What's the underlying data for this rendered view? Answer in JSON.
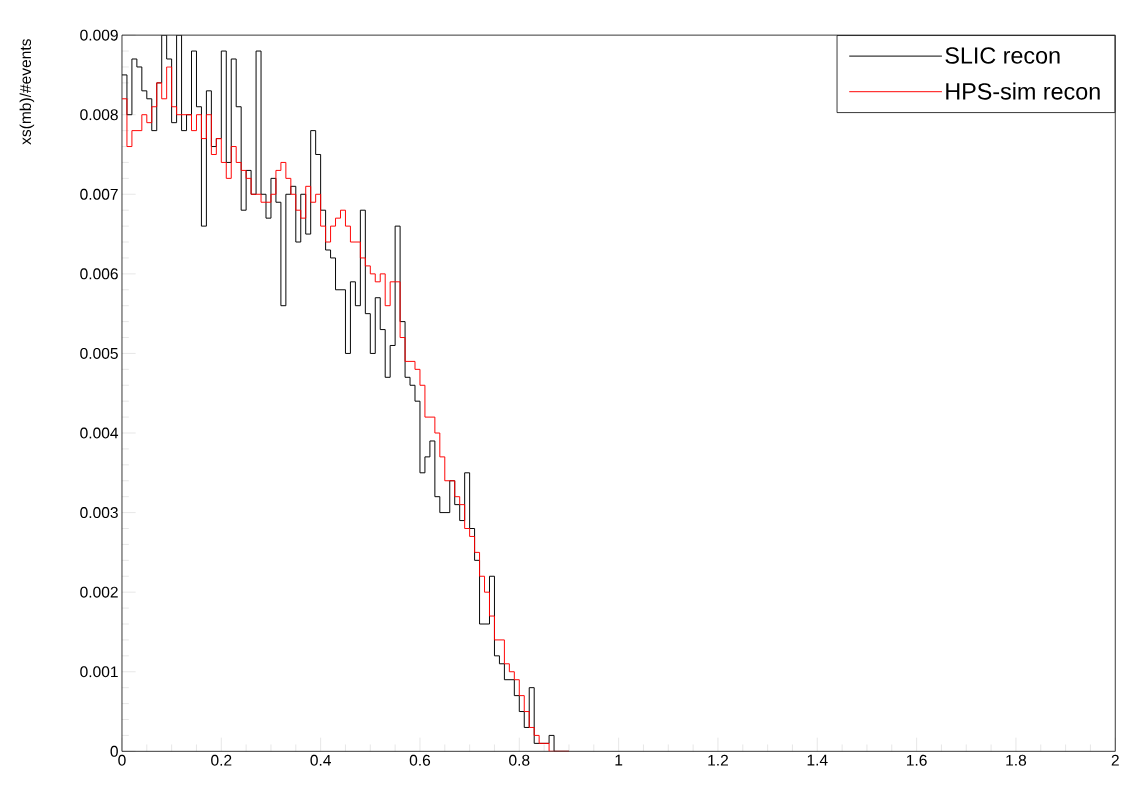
{
  "chart_data": {
    "type": "histogram",
    "ylabel": "xs(mb)/#events",
    "bins": [
      0,
      0.01,
      0.02,
      0.03,
      0.04,
      0.05,
      0.06,
      0.07,
      0.08,
      0.09,
      0.1,
      0.11,
      0.12,
      0.13,
      0.14,
      0.15,
      0.16,
      0.17,
      0.18,
      0.19,
      0.2,
      0.21,
      0.22,
      0.23,
      0.24,
      0.25,
      0.26,
      0.27,
      0.28,
      0.29,
      0.3,
      0.31,
      0.32,
      0.33,
      0.34,
      0.35,
      0.36,
      0.37,
      0.38,
      0.39,
      0.4,
      0.41,
      0.42,
      0.43,
      0.44,
      0.45,
      0.46,
      0.47,
      0.48,
      0.49,
      0.5,
      0.51,
      0.52,
      0.53,
      0.54,
      0.55,
      0.56,
      0.57,
      0.58,
      0.59,
      0.6,
      0.61,
      0.62,
      0.63,
      0.64,
      0.65,
      0.66,
      0.67,
      0.68,
      0.69,
      0.7,
      0.71,
      0.72,
      0.73,
      0.74,
      0.75,
      0.76,
      0.77,
      0.78,
      0.79,
      0.8,
      0.81,
      0.82,
      0.83,
      0.84,
      0.85,
      0.86,
      0.87,
      0.88,
      0.89,
      0.9
    ],
    "series": [
      {
        "name": "SLIC recon",
        "color": "#000000",
        "values": [
          0.0085,
          0.008,
          0.0087,
          0.0086,
          0.0083,
          0.0082,
          0.0078,
          0.0084,
          0.009,
          0.0087,
          0.0079,
          0.009,
          0.0078,
          0.008,
          0.0088,
          0.0081,
          0.0066,
          0.0083,
          0.0076,
          0.0077,
          0.0088,
          0.0074,
          0.0087,
          0.0081,
          0.0068,
          0.0073,
          0.007,
          0.0088,
          0.007,
          0.0067,
          0.0072,
          0.0069,
          0.0056,
          0.007,
          0.0071,
          0.0064,
          0.007,
          0.0065,
          0.0078,
          0.0075,
          0.0068,
          0.0063,
          0.0062,
          0.0058,
          0.0058,
          0.005,
          0.0059,
          0.0056,
          0.0068,
          0.0055,
          0.005,
          0.0057,
          0.0053,
          0.0047,
          0.0051,
          0.0066,
          0.0054,
          0.0047,
          0.0046,
          0.0044,
          0.0035,
          0.0037,
          0.0039,
          0.0032,
          0.003,
          0.003,
          0.0034,
          0.0031,
          0.0029,
          0.0035,
          0.0028,
          0.0024,
          0.0016,
          0.0016,
          0.0022,
          0.0012,
          0.0011,
          0.0009,
          0.0009,
          0.0007,
          0.0005,
          0.0003,
          0.0008,
          0.0001,
          0.0001,
          0.0001,
          0.0002,
          0,
          0,
          0
        ]
      },
      {
        "name": "HPS-sim recon",
        "color": "#ff0000",
        "values": [
          0.0082,
          0.0076,
          0.0078,
          0.0078,
          0.008,
          0.0079,
          0.0081,
          0.0084,
          0.0082,
          0.0086,
          0.0081,
          0.008,
          0.008,
          0.008,
          0.0078,
          0.008,
          0.0077,
          0.008,
          0.0075,
          0.0077,
          0.0074,
          0.0072,
          0.0076,
          0.0074,
          0.0073,
          0.0072,
          0.007,
          0.007,
          0.0069,
          0.0069,
          0.007,
          0.0073,
          0.0074,
          0.0072,
          0.007,
          0.0068,
          0.0067,
          0.0071,
          0.0069,
          0.007,
          0.0066,
          0.0064,
          0.0066,
          0.0067,
          0.0068,
          0.0066,
          0.0064,
          0.0064,
          0.0062,
          0.0061,
          0.006,
          0.0059,
          0.006,
          0.0056,
          0.0059,
          0.0059,
          0.0052,
          0.0049,
          0.0049,
          0.0048,
          0.0046,
          0.0042,
          0.0042,
          0.004,
          0.0037,
          0.0034,
          0.0034,
          0.0032,
          0.0031,
          0.0028,
          0.0027,
          0.0025,
          0.0022,
          0.002,
          0.0017,
          0.0014,
          0.0014,
          0.0011,
          0.001,
          0.0009,
          0.0007,
          0.0005,
          0.0003,
          0.0002,
          0.0001,
          0.0001,
          0,
          0,
          0,
          0
        ]
      }
    ],
    "xlim": [
      0,
      2
    ],
    "ylim": [
      0,
      0.009
    ],
    "xticks": [
      0,
      0.2,
      0.4,
      0.6,
      0.8,
      1,
      1.2,
      1.4,
      1.6,
      1.8,
      2
    ],
    "yticks": [
      0,
      0.001,
      0.002,
      0.003,
      0.004,
      0.005,
      0.006,
      0.007,
      0.008,
      0.009
    ],
    "legend": "top right"
  }
}
